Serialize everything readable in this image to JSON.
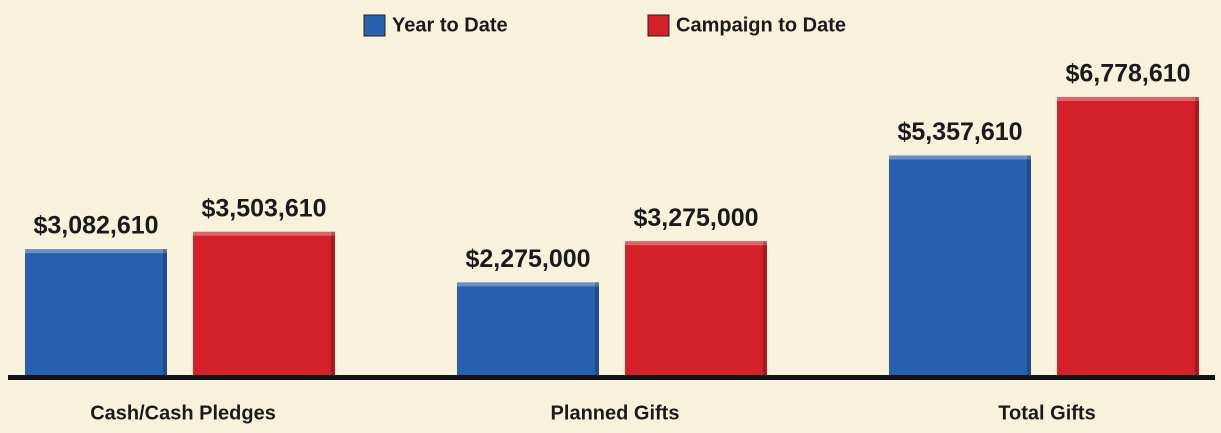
{
  "chart_data": {
    "type": "bar",
    "categories": [
      "Cash/Cash Pledges",
      "Planned Gifts",
      "Total Gifts"
    ],
    "series": [
      {
        "name": "Year to Date",
        "color": "#2a5fad",
        "values": [
          3082610,
          2275000,
          5357610
        ],
        "value_labels": [
          "$3,082,610",
          "$2,275,000",
          "$5,357,610"
        ]
      },
      {
        "name": "Campaign to Date",
        "color": "#d42028",
        "values": [
          3503610,
          3275000,
          6778610
        ],
        "value_labels": [
          "$3,503,610",
          "$3,275,000",
          "$6,778,610"
        ]
      }
    ],
    "legend": "top"
  }
}
